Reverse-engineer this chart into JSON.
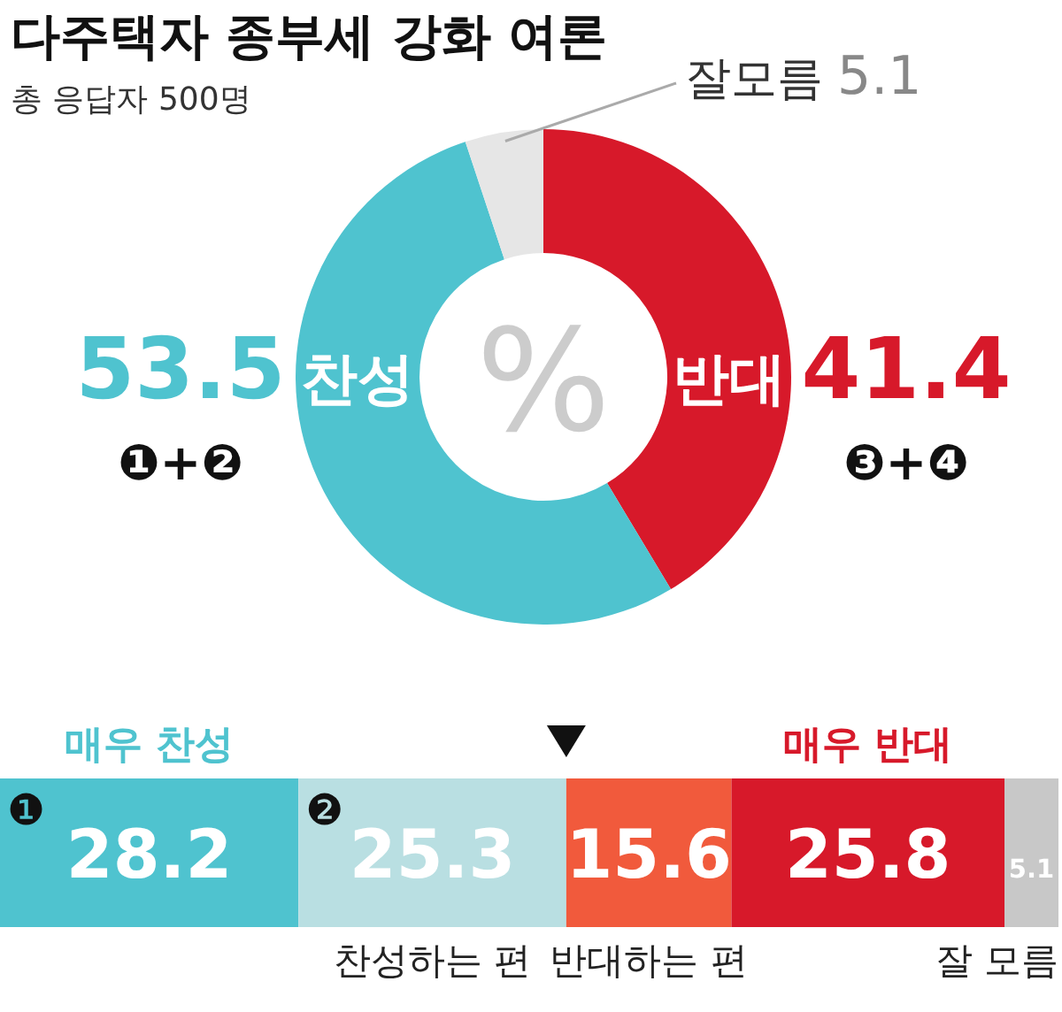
{
  "chart_data": [
    {
      "type": "donut",
      "title": "다주택자 종부세 강화 여론",
      "subtitle": "총 응답자 500명",
      "categories": [
        "반대",
        "찬성",
        "잘모름"
      ],
      "values": [
        41.4,
        53.5,
        5.1
      ],
      "colors": [
        "#d7192a",
        "#4fc3cf",
        "#e6e6e6"
      ],
      "data_labels": true,
      "annotations": [
        "❶+❷",
        "❸+❹",
        "%"
      ]
    },
    {
      "type": "bar",
      "orientation": "horizontal",
      "stacked": true,
      "categories": [
        null
      ],
      "xlim": [
        0,
        100
      ],
      "data_labels": true,
      "series": [
        {
          "name": "매우 찬성",
          "color": "#4fc3cf",
          "values": [
            28.2
          ]
        },
        {
          "name": "찬성하는 편",
          "color": "#b9dfe2",
          "values": [
            25.3
          ]
        },
        {
          "name": "반대하는 편",
          "color": "#f15a3c",
          "values": [
            15.6
          ]
        },
        {
          "name": "매우 반대",
          "color": "#d7192a",
          "values": [
            25.8
          ]
        },
        {
          "name": "잘 모름",
          "color": "#c8c8c8",
          "values": [
            5.1
          ]
        }
      ],
      "annotations": [
        "❶",
        "❷"
      ]
    }
  ]
}
